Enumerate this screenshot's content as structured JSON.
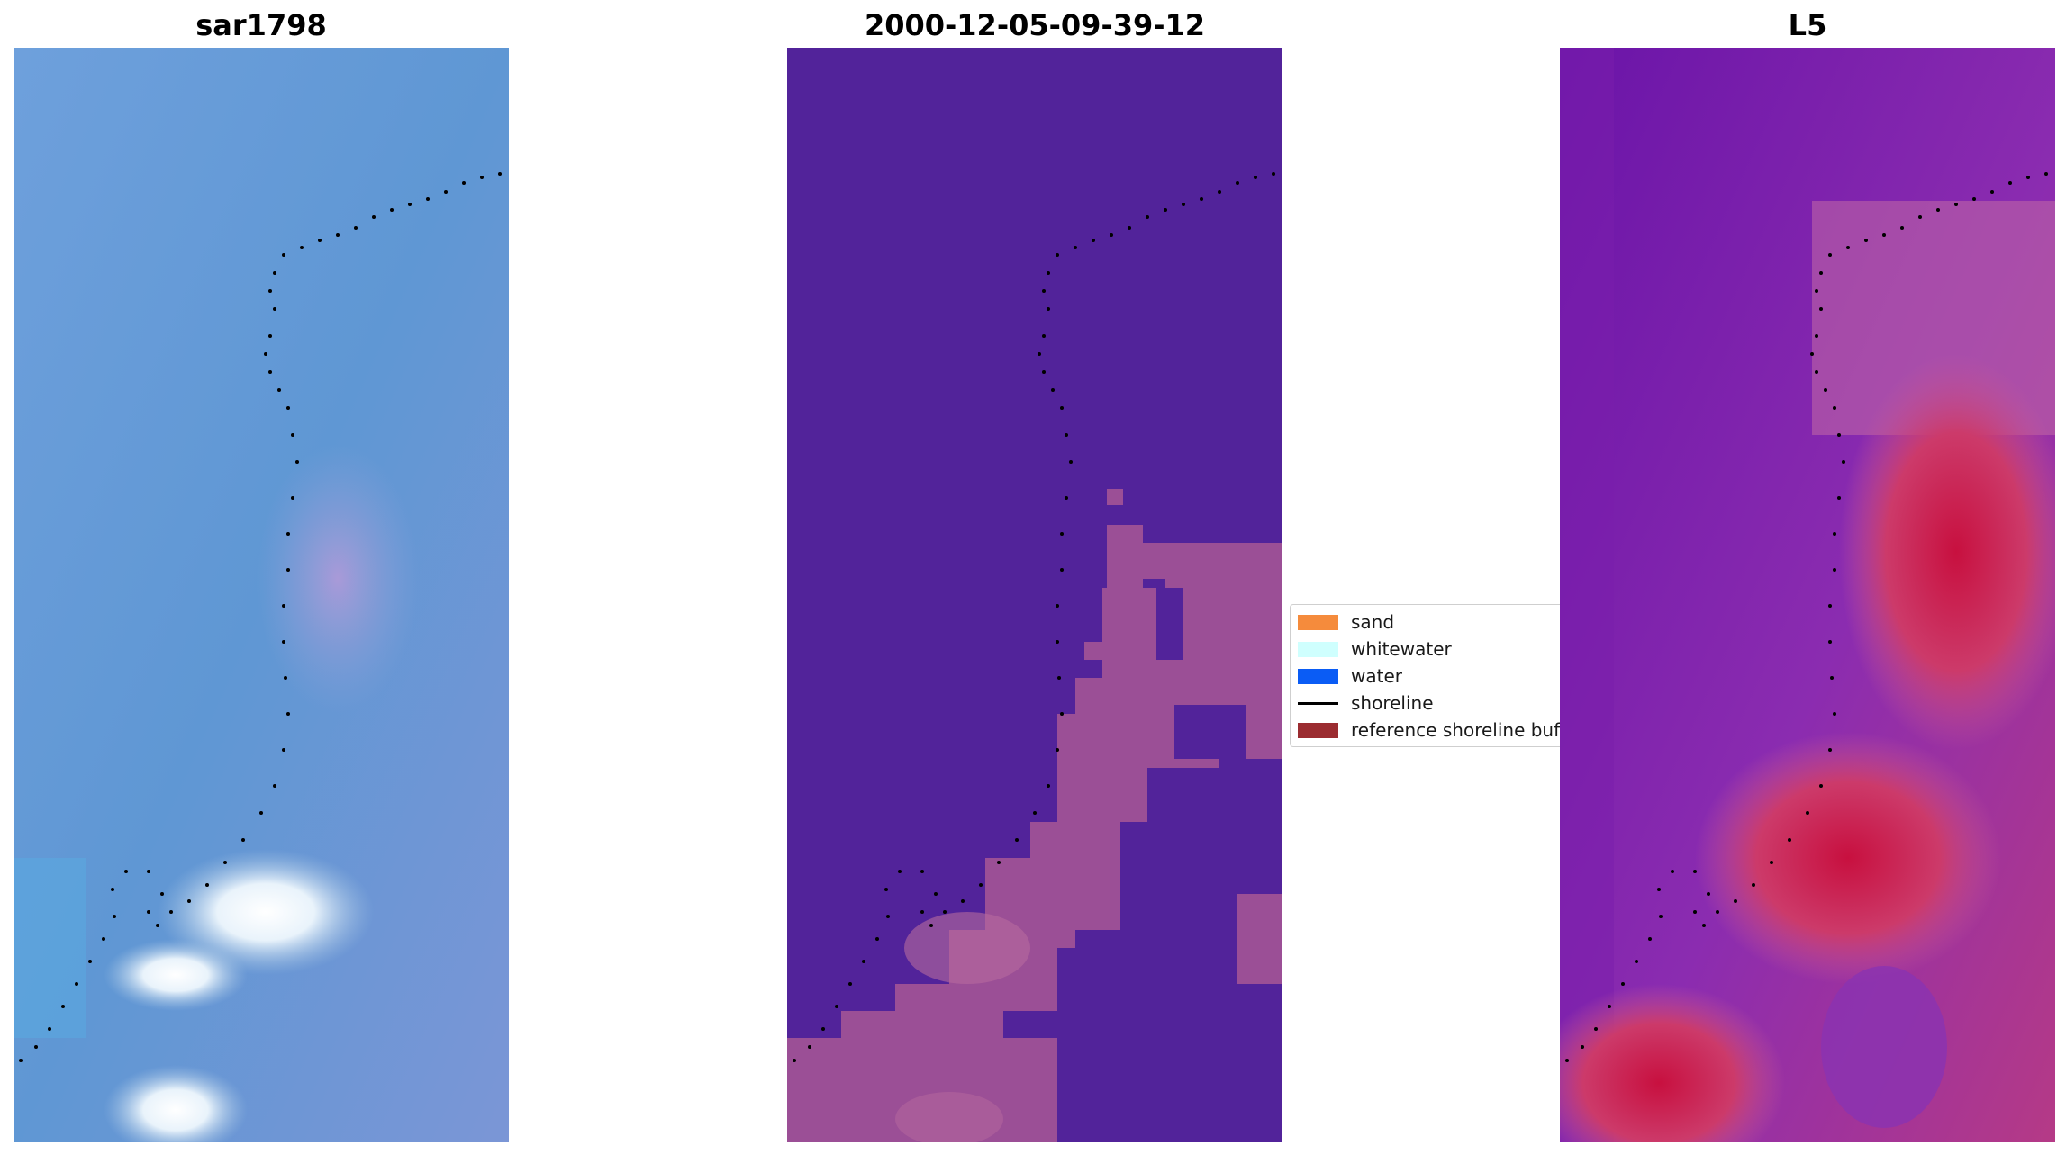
{
  "panels": [
    {
      "title": "sar1798"
    },
    {
      "title": "2000-12-05-09-39-12"
    },
    {
      "title": "L5"
    }
  ],
  "legend": {
    "items": [
      {
        "label": "sand",
        "color": "#f58b3c"
      },
      {
        "label": "whitewater",
        "color": "#cffffe"
      },
      {
        "label": "water",
        "color": "#0a5cf5"
      },
      {
        "label": "shoreline",
        "color": "#000000"
      },
      {
        "label": "reference shoreline buffer",
        "color": "#9b2c30"
      }
    ]
  },
  "colors": {
    "sar_base": "#6b9ad6",
    "class_water": "#52239a",
    "class_other": "#9b4f96",
    "l5_base": "#7f23b0",
    "l5_land": "#c8366e"
  }
}
